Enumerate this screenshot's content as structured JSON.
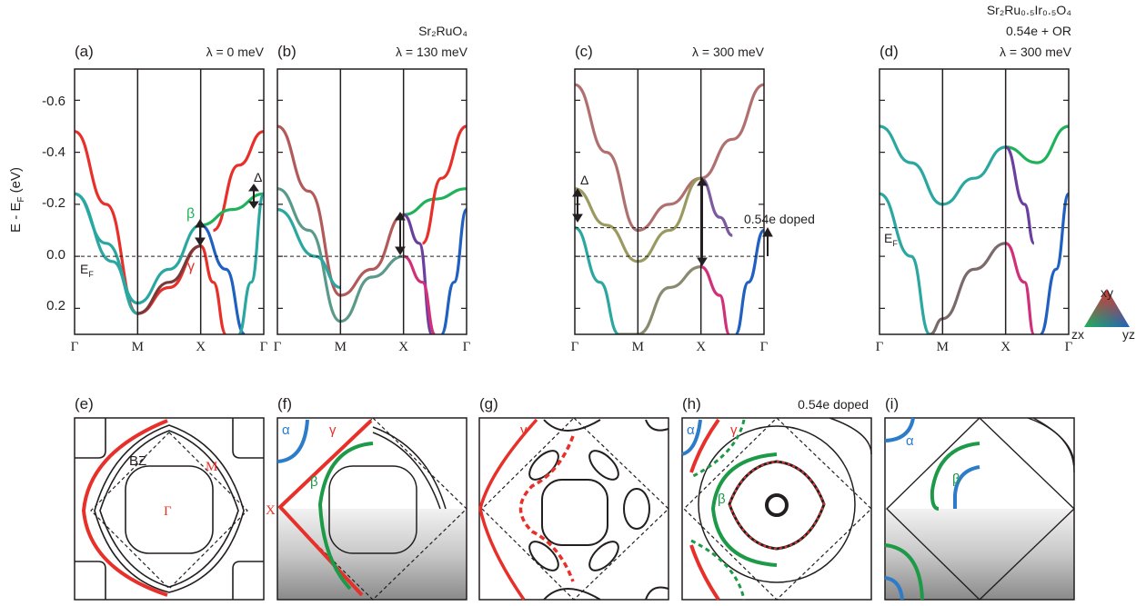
{
  "top_panels": [
    {
      "id": "a",
      "letter": "(a)",
      "title_lines": [
        "λ = 0 meV"
      ]
    },
    {
      "id": "b",
      "letter": "(b)",
      "title_lines": [
        "Sr₂RuO₄",
        "λ = 130 meV"
      ]
    },
    {
      "id": "c",
      "letter": "(c)",
      "title_lines": [
        "λ = 300 meV"
      ]
    },
    {
      "id": "d",
      "letter": "(d)",
      "title_lines": [
        "Sr₂Ru₀.₅Ir₀.₅O₄",
        "0.54e + OR",
        "λ = 300 meV"
      ]
    }
  ],
  "bottom_panels": [
    {
      "id": "e",
      "letter": "(e)"
    },
    {
      "id": "f",
      "letter": "(f)"
    },
    {
      "id": "g",
      "letter": "(g)"
    },
    {
      "id": "h",
      "letter": "(h)"
    },
    {
      "id": "i",
      "letter": "(i)"
    }
  ],
  "y_axis_label": "E - E",
  "y_axis_label_sub": "F",
  "y_axis_label_unit": " (eV)",
  "y_ticks": [
    "-0.6",
    "-0.4",
    "-0.2",
    "0.0",
    "0.2"
  ],
  "k_labels": [
    "Γ",
    "M",
    "X",
    "Γ"
  ],
  "annotations": {
    "a_beta": "β",
    "a_gamma": "γ",
    "a_ef": "E",
    "a_ef_sub": "F",
    "b_delta": "Δ",
    "c_delta": "Δ",
    "c_doped": "0.54e doped",
    "d_ef": "E",
    "d_ef_sub": "F",
    "e_bz": "BZ",
    "e_m": "M",
    "e_gamma": "Γ",
    "e_x": "X",
    "f_alpha": "α",
    "f_gamma": "γ",
    "f_beta": "β",
    "g_gamma": "γ",
    "h_doped": "0.54e doped",
    "h_alpha": "α",
    "h_gamma": "γ",
    "h_beta": "β",
    "i_alpha": "α",
    "i_beta": "β"
  },
  "color_legend": {
    "top": "xy",
    "left": "zx",
    "right": "yz"
  },
  "colors": {
    "xy": "#e8302a",
    "zx": "#1fb25a",
    "yz": "#2060c0",
    "mixed": "#2aa7a0",
    "frame": "#231f20"
  },
  "chart_data": [
    {
      "type": "line",
      "panel": "a",
      "ylim": [
        0.3,
        -0.72
      ],
      "x": [
        "Γ",
        "M",
        "X",
        "Γ"
      ],
      "fermi_level": 0.0,
      "series": [
        {
          "color": "#e8302a",
          "points": [
            [
              0,
              -0.48
            ],
            [
              0.5,
              -0.2
            ],
            [
              1,
              0.22
            ],
            [
              1.5,
              0.12
            ],
            [
              2,
              -0.04
            ],
            [
              2.2,
              0.1
            ],
            [
              2.4,
              0.3
            ]
          ]
        },
        {
          "color": "#e8302a",
          "points": [
            [
              2.2,
              -0.1
            ],
            [
              2.6,
              -0.35
            ],
            [
              3,
              -0.48
            ]
          ]
        },
        {
          "color": "#2aa7a0",
          "points": [
            [
              0,
              -0.24
            ],
            [
              0.5,
              -0.05
            ],
            [
              1,
              0.18
            ],
            [
              1.5,
              0.05
            ],
            [
              2,
              -0.12
            ]
          ]
        },
        {
          "color": "#2aa7a0",
          "points": [
            [
              0,
              -0.24
            ],
            [
              0.6,
              0.02
            ],
            [
              1,
              0.22
            ]
          ]
        },
        {
          "color": "#7b3a3a",
          "points": [
            [
              1,
              0.22
            ],
            [
              1.5,
              0.1
            ],
            [
              2,
              -0.04
            ]
          ]
        },
        {
          "color": "#1fb25a",
          "points": [
            [
              2,
              -0.12
            ],
            [
              2.5,
              -0.18
            ],
            [
              3,
              -0.24
            ]
          ]
        },
        {
          "color": "#2060c0",
          "points": [
            [
              2,
              -0.12
            ],
            [
              2.4,
              0.05
            ],
            [
              2.7,
              0.3
            ]
          ]
        },
        {
          "color": "#2aa7a0",
          "points": [
            [
              2.6,
              0.3
            ],
            [
              2.8,
              0.1
            ],
            [
              3,
              -0.24
            ]
          ]
        }
      ]
    },
    {
      "type": "line",
      "panel": "b",
      "ylim": [
        0.3,
        -0.72
      ],
      "x": [
        "Γ",
        "M",
        "X",
        "Γ"
      ],
      "fermi_level": 0.0,
      "series": [
        {
          "color": "#b25a5a",
          "points": [
            [
              0,
              -0.5
            ],
            [
              0.5,
              -0.25
            ],
            [
              1,
              0.15
            ],
            [
              1.5,
              0.05
            ],
            [
              2,
              -0.16
            ]
          ]
        },
        {
          "color": "#5a9a8a",
          "points": [
            [
              0,
              -0.26
            ],
            [
              0.5,
              -0.1
            ],
            [
              1,
              0.25
            ],
            [
              1.5,
              0.08
            ],
            [
              2,
              0.0
            ]
          ]
        },
        {
          "color": "#2aa7a0",
          "points": [
            [
              0,
              -0.18
            ],
            [
              0.6,
              0.0
            ],
            [
              1,
              0.12
            ]
          ]
        },
        {
          "color": "#1fb25a",
          "points": [
            [
              2,
              -0.16
            ],
            [
              2.5,
              -0.22
            ],
            [
              3,
              -0.26
            ]
          ]
        },
        {
          "color": "#6b3fa0",
          "points": [
            [
              2,
              -0.16
            ],
            [
              2.25,
              -0.05
            ],
            [
              2.45,
              0.3
            ]
          ]
        },
        {
          "color": "#e8302a",
          "points": [
            [
              2.3,
              -0.05
            ],
            [
              2.6,
              -0.3
            ],
            [
              3,
              -0.5
            ]
          ]
        },
        {
          "color": "#d0307a",
          "points": [
            [
              2,
              0.0
            ],
            [
              2.3,
              0.1
            ],
            [
              2.5,
              0.3
            ]
          ]
        },
        {
          "color": "#2060c0",
          "points": [
            [
              2.6,
              0.3
            ],
            [
              2.8,
              0.1
            ],
            [
              3,
              -0.18
            ]
          ]
        }
      ]
    },
    {
      "type": "line",
      "panel": "c",
      "ylim": [
        0.3,
        -0.72
      ],
      "x": [
        "Γ",
        "M",
        "X",
        "Γ"
      ],
      "fermi_level": 0.0,
      "doped_level": -0.11,
      "series": [
        {
          "color": "#b07070",
          "points": [
            [
              0,
              -0.66
            ],
            [
              0.5,
              -0.4
            ],
            [
              1,
              -0.1
            ],
            [
              1.5,
              -0.2
            ],
            [
              2,
              -0.3
            ]
          ]
        },
        {
          "color": "#9a9a60",
          "points": [
            [
              0,
              -0.26
            ],
            [
              0.5,
              -0.12
            ],
            [
              1,
              0.02
            ],
            [
              1.5,
              -0.1
            ],
            [
              2,
              -0.3
            ]
          ]
        },
        {
          "color": "#2aa7a0",
          "points": [
            [
              0,
              -0.11
            ],
            [
              0.4,
              0.1
            ],
            [
              0.7,
              0.3
            ]
          ]
        },
        {
          "color": "#8a8a70",
          "points": [
            [
              0.7,
              0.3
            ],
            [
              1,
              0.3
            ],
            [
              1.5,
              0.12
            ],
            [
              2,
              0.04
            ]
          ]
        },
        {
          "color": "#7b5aa0",
          "points": [
            [
              2,
              -0.3
            ],
            [
              2.3,
              -0.15
            ],
            [
              2.5,
              -0.08
            ]
          ]
        },
        {
          "color": "#b07070",
          "points": [
            [
              2,
              -0.3
            ],
            [
              2.5,
              -0.45
            ],
            [
              3,
              -0.66
            ]
          ]
        },
        {
          "color": "#d0307a",
          "points": [
            [
              2,
              0.04
            ],
            [
              2.3,
              0.15
            ],
            [
              2.45,
              0.3
            ]
          ]
        },
        {
          "color": "#2060c0",
          "points": [
            [
              2.55,
              0.3
            ],
            [
              2.75,
              0.1
            ],
            [
              3,
              -0.1
            ]
          ]
        }
      ]
    },
    {
      "type": "line",
      "panel": "d",
      "ylim": [
        0.3,
        -0.72
      ],
      "x": [
        "Γ",
        "M",
        "X",
        "Γ"
      ],
      "fermi_level": -0.11,
      "series": [
        {
          "color": "#2aa7a0",
          "points": [
            [
              0,
              -0.5
            ],
            [
              0.5,
              -0.36
            ],
            [
              1,
              -0.2
            ],
            [
              1.5,
              -0.3
            ],
            [
              2,
              -0.42
            ]
          ]
        },
        {
          "color": "#2aa7a0",
          "points": [
            [
              0,
              -0.24
            ],
            [
              0.5,
              0.0
            ],
            [
              0.8,
              0.3
            ]
          ]
        },
        {
          "color": "#7b6a6a",
          "points": [
            [
              0.8,
              0.3
            ],
            [
              1,
              0.24
            ],
            [
              1.5,
              0.05
            ],
            [
              2,
              -0.05
            ]
          ]
        },
        {
          "color": "#1fb25a",
          "points": [
            [
              2,
              -0.42
            ],
            [
              2.5,
              -0.36
            ],
            [
              3,
              -0.5
            ]
          ]
        },
        {
          "color": "#6b3fa0",
          "points": [
            [
              2,
              -0.42
            ],
            [
              2.3,
              -0.2
            ],
            [
              2.45,
              -0.05
            ]
          ]
        },
        {
          "color": "#d0307a",
          "points": [
            [
              2,
              -0.05
            ],
            [
              2.3,
              0.1
            ],
            [
              2.45,
              0.3
            ]
          ]
        },
        {
          "color": "#2060c0",
          "points": [
            [
              2.55,
              0.3
            ],
            [
              2.8,
              0.05
            ],
            [
              3,
              -0.24
            ]
          ]
        }
      ]
    }
  ]
}
